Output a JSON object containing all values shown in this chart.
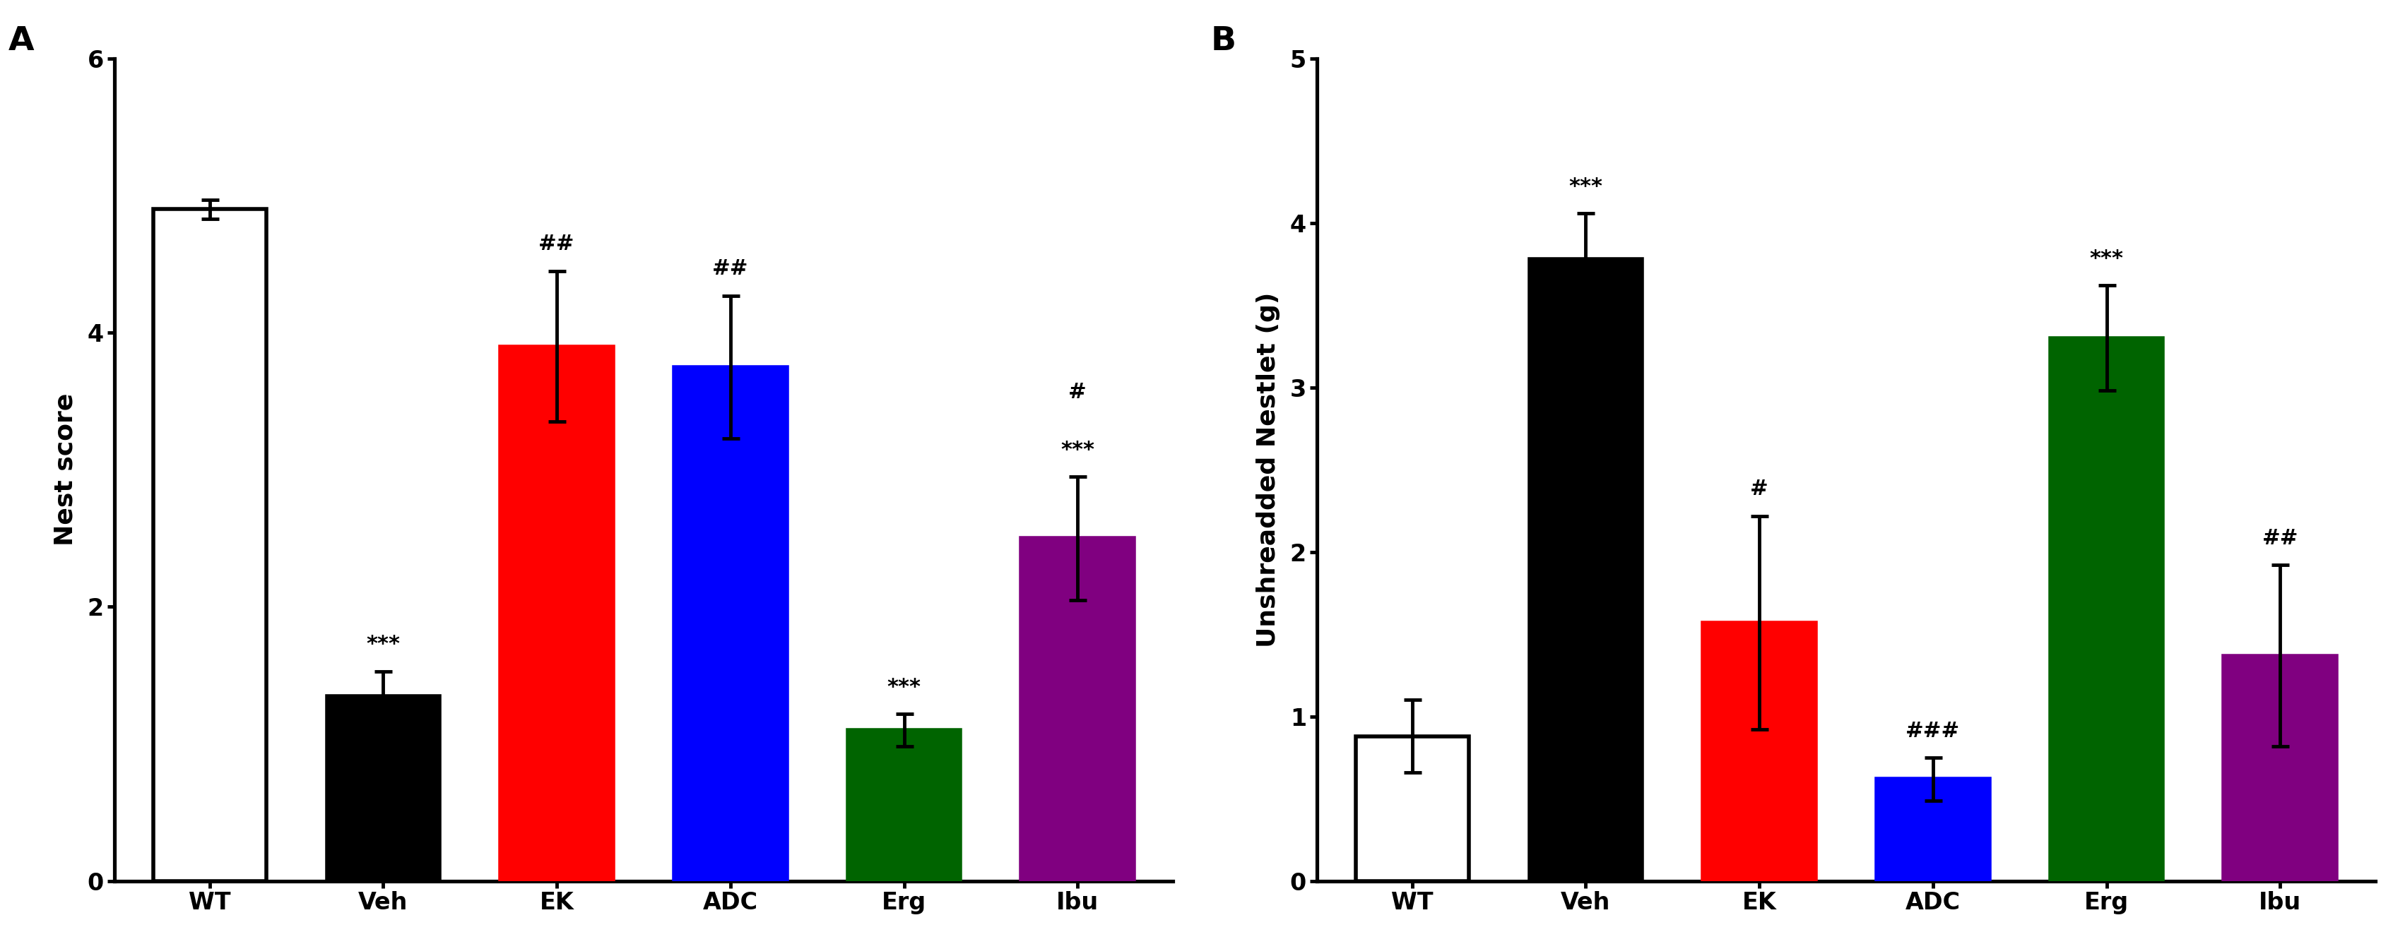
{
  "panel_A": {
    "title": "A",
    "categories": [
      "WT",
      "Veh",
      "EK",
      "ADC",
      "Erg",
      "Ibu"
    ],
    "values": [
      4.9,
      1.35,
      3.9,
      3.75,
      1.1,
      2.5
    ],
    "errors": [
      0.07,
      0.18,
      0.55,
      0.52,
      0.12,
      0.45
    ],
    "colors": [
      "#ffffff",
      "#000000",
      "#ff0000",
      "#0000ff",
      "#006400",
      "#800080"
    ],
    "edgecolors": [
      "#000000",
      "#000000",
      "#ff0000",
      "#0000ff",
      "#006400",
      "#800080"
    ],
    "ylabel": "Nest score",
    "ylim": [
      0,
      6
    ],
    "yticks": [
      0,
      2,
      4,
      6
    ],
    "annot_stars": [
      "",
      "***",
      "",
      "",
      "***",
      "***"
    ],
    "annot_hashes": [
      "",
      "",
      "##",
      "##",
      "",
      "#"
    ]
  },
  "panel_B": {
    "title": "B",
    "categories": [
      "WT",
      "Veh",
      "EK",
      "ADC",
      "Erg",
      "Ibu"
    ],
    "values": [
      0.88,
      3.78,
      1.57,
      0.62,
      3.3,
      1.37
    ],
    "errors": [
      0.22,
      0.28,
      0.65,
      0.13,
      0.32,
      0.55
    ],
    "colors": [
      "#ffffff",
      "#000000",
      "#ff0000",
      "#0000ff",
      "#006400",
      "#800080"
    ],
    "edgecolors": [
      "#000000",
      "#000000",
      "#ff0000",
      "#0000ff",
      "#006400",
      "#800080"
    ],
    "ylabel": "Unshreadded Nestlet (g)",
    "ylim": [
      0,
      5
    ],
    "yticks": [
      0,
      1,
      2,
      3,
      4,
      5
    ],
    "annot_stars": [
      "",
      "***",
      "",
      "",
      "***",
      ""
    ],
    "annot_hashes": [
      "",
      "",
      "#",
      "###",
      "",
      "##"
    ]
  },
  "background_color": "#ffffff",
  "bar_width": 0.65,
  "fontsize_ylabel": 26,
  "fontsize_ticks": 24,
  "fontsize_title": 34,
  "fontsize_annot": 22,
  "linewidth": 2.5
}
